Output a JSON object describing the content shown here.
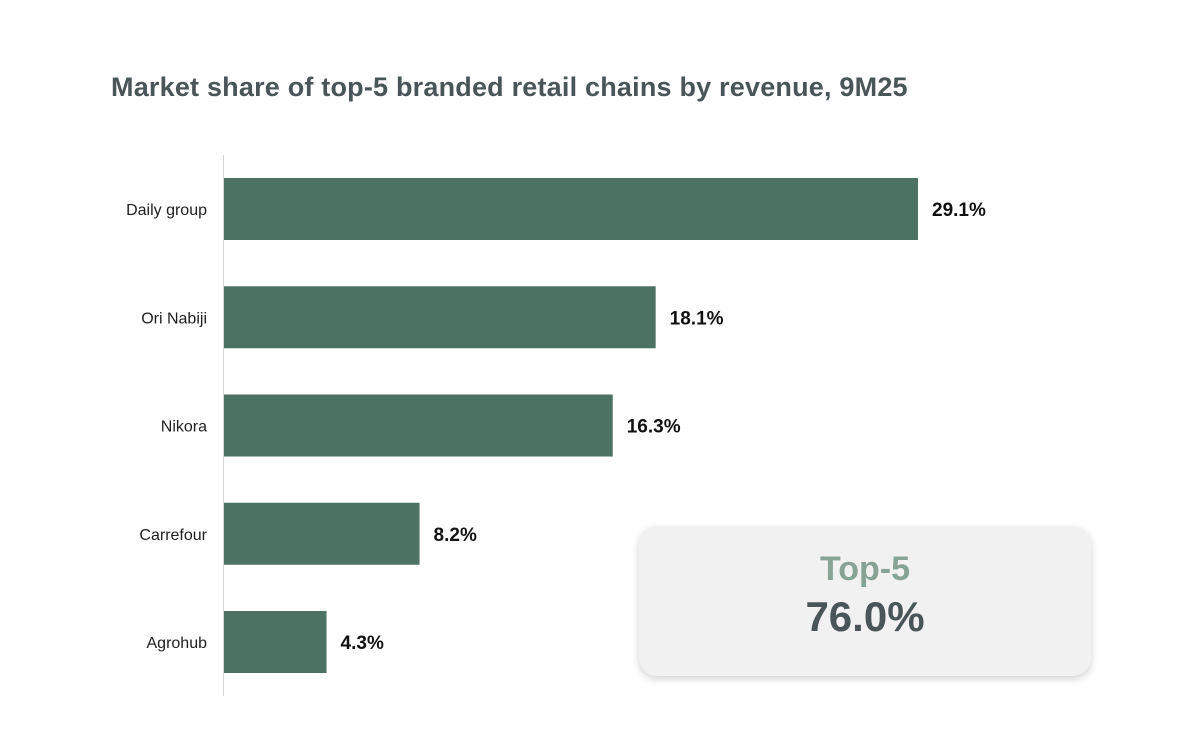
{
  "chart_data": {
    "type": "bar",
    "orientation": "horizontal",
    "title": "Market share of top-5 branded retail chains by revenue, 9M25",
    "categories": [
      "Daily group",
      "Ori Nabiji",
      "Nikora",
      "Carrefour",
      "Agrohub"
    ],
    "values": [
      29.1,
      18.1,
      16.3,
      8.2,
      4.3
    ],
    "data_labels": [
      "29.1%",
      "18.1%",
      "16.3%",
      "8.2%",
      "4.3%"
    ],
    "unit": "%",
    "xlim": [
      0,
      29.1
    ],
    "grid": false,
    "bar_color": "#4b7262"
  },
  "summary": {
    "label": "Top-5",
    "value": "76.0%"
  }
}
